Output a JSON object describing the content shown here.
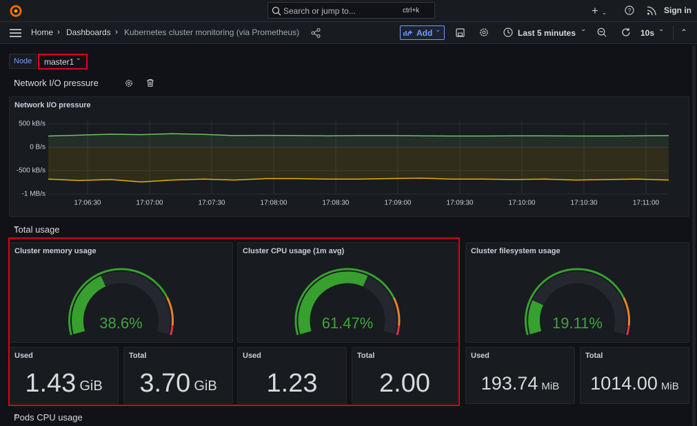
{
  "topbar": {
    "search": "Search or jump to...",
    "shortcut": "ctrl+k",
    "sign_in": "Sign in"
  },
  "breadcrumb": [
    "Home",
    "Dashboards",
    "Kubernetes cluster monitoring (via Prometheus)"
  ],
  "toolbar": {
    "add": "Add",
    "time_range": "Last 5 minutes",
    "refresh": "10s"
  },
  "variable": {
    "label": "Node",
    "value": "master1"
  },
  "rows": [
    "Network I/O pressure",
    "Total usage",
    "Pods CPU usage"
  ],
  "network_panel": {
    "title": "Network I/O pressure",
    "chart_data": {
      "type": "line",
      "x": [
        "17:06:11",
        "17:06:26",
        "17:06:41",
        "17:06:56",
        "17:07:11",
        "17:07:26",
        "17:07:41",
        "17:07:56",
        "17:08:11",
        "17:08:26",
        "17:08:41",
        "17:08:56",
        "17:09:11",
        "17:09:26",
        "17:09:41",
        "17:09:56",
        "17:10:11",
        "17:10:26",
        "17:10:41",
        "17:10:56",
        "17:11:11"
      ],
      "series": [
        {
          "color": "#73bf69",
          "values": [
            240,
            260,
            280,
            270,
            290,
            275,
            250,
            255,
            250,
            245,
            250,
            250,
            245,
            240,
            240,
            245,
            245,
            240,
            240,
            245,
            250
          ]
        },
        {
          "color": "#e0b400",
          "values": [
            -680,
            -710,
            -690,
            -740,
            -700,
            -680,
            -700,
            -670,
            -670,
            -680,
            -680,
            -670,
            -660,
            -680,
            -680,
            -690,
            -680,
            -700,
            -690,
            -680,
            -700
          ]
        }
      ],
      "xlim": [
        "17:06:11",
        "17:11:11"
      ],
      "xticks": [
        "17:06:30",
        "17:07:00",
        "17:07:30",
        "17:08:00",
        "17:08:30",
        "17:09:00",
        "17:09:30",
        "17:10:00",
        "17:10:30",
        "17:11:00"
      ],
      "ylim": [
        -1000,
        600
      ],
      "yticks": [
        {
          "value": 500,
          "label": "500 kB/s"
        },
        {
          "value": 0,
          "label": "0 B/s"
        },
        {
          "value": -500,
          "label": "-500 kB/s"
        },
        {
          "value": -1000,
          "label": "-1 MB/s"
        }
      ],
      "grid": true
    }
  },
  "usage_groups": [
    {
      "title": "Cluster memory usage",
      "gauge": {
        "value": 38.6,
        "label": "38.6%"
      },
      "used": {
        "label": "Used",
        "value": "1.43",
        "unit": "GiB"
      },
      "total": {
        "label": "Total",
        "value": "3.70",
        "unit": "GiB"
      }
    },
    {
      "title": "Cluster CPU usage (1m avg)",
      "gauge": {
        "value": 61.47,
        "label": "61.47%"
      },
      "used": {
        "label": "Used",
        "value": "1.23"
      },
      "total": {
        "label": "Total",
        "value": "2.00"
      }
    },
    {
      "title": "Cluster filesystem usage",
      "gauge": {
        "value": 19.11,
        "label": "19.11%"
      },
      "used": {
        "label": "Used",
        "value": "193.74",
        "unit": "MiB"
      },
      "total": {
        "label": "Total",
        "value": "1014.00",
        "unit": "MiB"
      }
    }
  ]
}
